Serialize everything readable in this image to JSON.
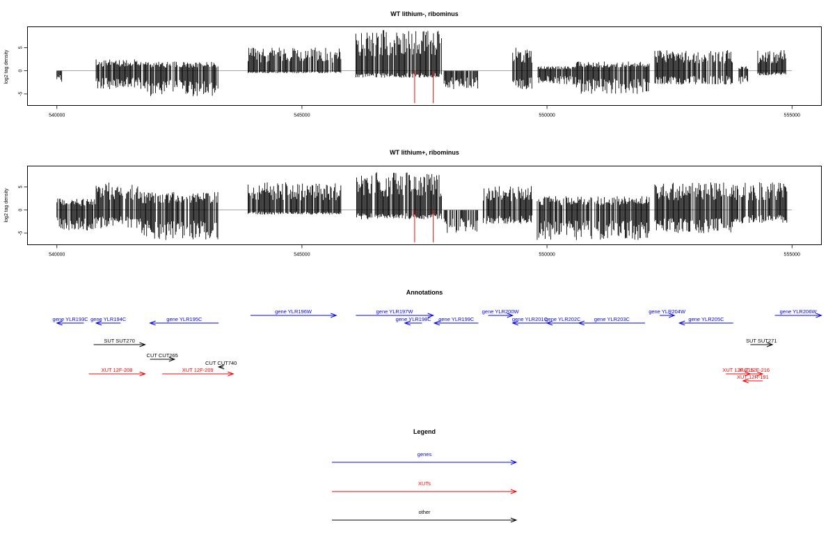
{
  "colors": {
    "axis": "#000000",
    "bars": "#000000",
    "markers": "#ff0000",
    "zero_line": "#888888",
    "genes": "#0000ff",
    "xuts": "#ff0000",
    "other": "#000000"
  },
  "chart_data": [
    {
      "type": "bar",
      "title": "WT lithium-, ribominus",
      "ylabel": "log2 tag density",
      "xlabel": "",
      "xlim": [
        539400,
        555600
      ],
      "ylim": [
        -7.5,
        9.5
      ],
      "xticks": [
        540000,
        545000,
        550000,
        555000
      ],
      "xtick_labels": [
        "540000",
        "545000",
        "550000",
        "555000"
      ],
      "yticks": [
        -5,
        0,
        5
      ],
      "ytick_labels": [
        "-5",
        "0",
        "5"
      ],
      "marker_positions": [
        547300,
        547680
      ],
      "marker_range": [
        -7,
        0
      ],
      "segments": [
        {
          "start": 540000,
          "end": 540100,
          "min": -2.5,
          "max": 0
        },
        {
          "start": 540800,
          "end": 541800,
          "min": -4,
          "max": 2.5
        },
        {
          "start": 541800,
          "end": 543300,
          "min": -5.5,
          "max": 2
        },
        {
          "start": 543900,
          "end": 545800,
          "min": -0.5,
          "max": 5
        },
        {
          "start": 546100,
          "end": 547850,
          "min": -1.5,
          "max": 8.8
        },
        {
          "start": 547900,
          "end": 548600,
          "min": -4,
          "max": 0
        },
        {
          "start": 549300,
          "end": 549700,
          "min": -4,
          "max": 5
        },
        {
          "start": 549800,
          "end": 550600,
          "min": -3,
          "max": 1
        },
        {
          "start": 550600,
          "end": 552100,
          "min": -5,
          "max": 2
        },
        {
          "start": 552200,
          "end": 553800,
          "min": -3,
          "max": 4.5
        },
        {
          "start": 553900,
          "end": 554100,
          "min": -3,
          "max": 1
        },
        {
          "start": 554300,
          "end": 554900,
          "min": -1,
          "max": 4.5
        }
      ]
    },
    {
      "type": "bar",
      "title": "WT lithium+, ribominus",
      "ylabel": "log2 tag density",
      "xlabel": "",
      "xlim": [
        539400,
        555600
      ],
      "ylim": [
        -7.5,
        9.5
      ],
      "xticks": [
        540000,
        545000,
        550000,
        555000
      ],
      "xtick_labels": [
        "540000",
        "545000",
        "550000",
        "555000"
      ],
      "yticks": [
        -5,
        0,
        5
      ],
      "ytick_labels": [
        "-5",
        "0",
        "5"
      ],
      "marker_positions": [
        547300,
        547680
      ],
      "marker_range": [
        -7,
        0
      ],
      "segments": [
        {
          "start": 540000,
          "end": 540800,
          "min": -4.5,
          "max": 2.5
        },
        {
          "start": 540800,
          "end": 541700,
          "min": -4,
          "max": 6
        },
        {
          "start": 541700,
          "end": 543300,
          "min": -6.5,
          "max": 4
        },
        {
          "start": 543900,
          "end": 545800,
          "min": -1,
          "max": 6
        },
        {
          "start": 546100,
          "end": 547850,
          "min": -2,
          "max": 8.2
        },
        {
          "start": 547900,
          "end": 548600,
          "min": -5,
          "max": 0
        },
        {
          "start": 548700,
          "end": 549700,
          "min": -3,
          "max": 5.5
        },
        {
          "start": 549800,
          "end": 552100,
          "min": -6.5,
          "max": 3
        },
        {
          "start": 552200,
          "end": 553800,
          "min": -5,
          "max": 6
        },
        {
          "start": 553800,
          "end": 554900,
          "min": -3,
          "max": 6
        }
      ]
    }
  ],
  "annotations": {
    "title": "Annotations",
    "xlim": [
      539400,
      555600
    ],
    "items": [
      {
        "label": "gene YLR193C",
        "start": 540000,
        "end": 540550,
        "strand": "-",
        "kind": "gene",
        "row": 1
      },
      {
        "label": "gene YLR194C",
        "start": 540800,
        "end": 541300,
        "strand": "-",
        "kind": "gene",
        "row": 1
      },
      {
        "label": "gene YLR195C",
        "start": 541900,
        "end": 543300,
        "strand": "-",
        "kind": "gene",
        "row": 1
      },
      {
        "label": "gene YLR196W",
        "start": 543950,
        "end": 545700,
        "strand": "+",
        "kind": "gene",
        "row": 0
      },
      {
        "label": "gene YLR197W",
        "start": 546100,
        "end": 547680,
        "strand": "+",
        "kind": "gene",
        "row": 0
      },
      {
        "label": "gene YLR198C",
        "start": 547100,
        "end": 547450,
        "strand": "-",
        "kind": "gene",
        "row": 1
      },
      {
        "label": "gene YLR199C",
        "start": 547700,
        "end": 548600,
        "strand": "-",
        "kind": "gene",
        "row": 1
      },
      {
        "label": "gene YLR200W",
        "start": 548800,
        "end": 549300,
        "strand": "+",
        "kind": "gene",
        "row": 0
      },
      {
        "label": "gene YLR201C",
        "start": 549300,
        "end": 550000,
        "strand": "-",
        "kind": "gene",
        "row": 1
      },
      {
        "label": "gene YLR202C",
        "start": 550000,
        "end": 550650,
        "strand": "-",
        "kind": "gene",
        "row": 1
      },
      {
        "label": "gene YLR203C",
        "start": 550650,
        "end": 552000,
        "strand": "-",
        "kind": "gene",
        "row": 1
      },
      {
        "label": "gene YLR204W",
        "start": 552300,
        "end": 552600,
        "strand": "+",
        "kind": "gene",
        "row": 0
      },
      {
        "label": "gene YLR205C",
        "start": 552700,
        "end": 553800,
        "strand": "-",
        "kind": "gene",
        "row": 1
      },
      {
        "label": "gene YLR206W",
        "start": 554650,
        "end": 555600,
        "strand": "+",
        "kind": "gene",
        "row": 0
      },
      {
        "label": "SUT SUT270",
        "start": 540750,
        "end": 541800,
        "strand": "+",
        "kind": "other",
        "row": 2
      },
      {
        "label": "CUT CUT265",
        "start": 541900,
        "end": 542400,
        "strand": "+",
        "kind": "other",
        "row": 3
      },
      {
        "label": "CUT CUT740",
        "start": 543300,
        "end": 543400,
        "strand": "-",
        "kind": "other",
        "row": 4
      },
      {
        "label": "SUT SUT271",
        "start": 554150,
        "end": 554600,
        "strand": "+",
        "kind": "other",
        "row": 2
      },
      {
        "label": "XUT 12F-208",
        "start": 540650,
        "end": 541800,
        "strand": "+",
        "kind": "xut",
        "row": 5
      },
      {
        "label": "XUT 12F-209",
        "start": 542150,
        "end": 543600,
        "strand": "+",
        "kind": "xut",
        "row": 5
      },
      {
        "label": "XUT 12F-215",
        "start": 553650,
        "end": 554150,
        "strand": "+",
        "kind": "xut",
        "row": 5
      },
      {
        "label": "XUT 12F-216",
        "start": 554050,
        "end": 554400,
        "strand": "+",
        "kind": "xut",
        "row": 5
      },
      {
        "label": "XUT 12R-191",
        "start": 554000,
        "end": 554400,
        "strand": "-",
        "kind": "xut",
        "row": 6
      }
    ]
  },
  "legend": {
    "title": "Legend",
    "entries": [
      {
        "label": "genes",
        "kind": "gene"
      },
      {
        "label": "XUTs",
        "kind": "xut"
      },
      {
        "label": "other",
        "kind": "other"
      }
    ]
  }
}
